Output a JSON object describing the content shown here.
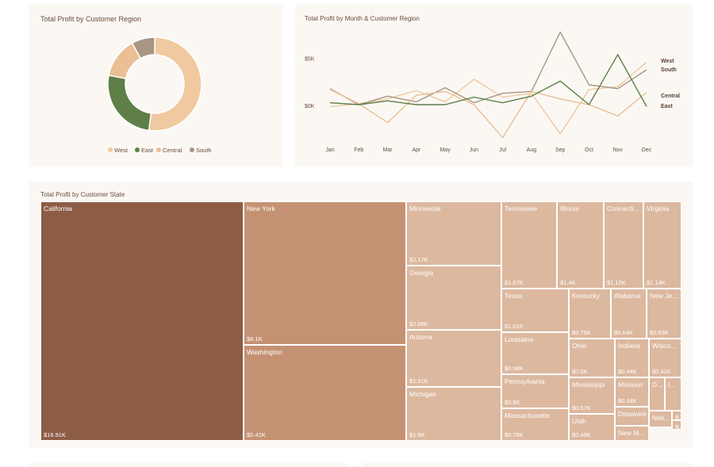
{
  "colors": {
    "west": "#f0c9a0",
    "east": "#5e7f47",
    "central": "#e9bf93",
    "south": "#a89682",
    "treemap_top": "#8d5c45",
    "treemap_second": "#c49273",
    "treemap_rest": "#dcb89f"
  },
  "chart_data": [
    {
      "type": "pie",
      "title": "Total Profit by Customer Region",
      "categories": [
        "West",
        "East",
        "Central",
        "South"
      ],
      "values": [
        52,
        26,
        14,
        8
      ],
      "legend": [
        "West",
        "East",
        "Central",
        "South"
      ]
    },
    {
      "type": "line",
      "title": "Total Profit by Month & Customer Region",
      "categories": [
        "Jan",
        "Feb",
        "Mar",
        "Apr",
        "May",
        "Jun",
        "Jul",
        "Aug",
        "Sep",
        "Oct",
        "Nov",
        "Dec"
      ],
      "yticks": [
        "$5K",
        "$0K"
      ],
      "ytick_values": [
        5000,
        0
      ],
      "ylim": [
        -3600,
        8000
      ],
      "series": [
        {
          "name": "West",
          "values": [
            -100,
            200,
            700,
            1600,
            400,
            2800,
            900,
            1300,
            -3000,
            1700,
            2000,
            4600
          ]
        },
        {
          "name": "South",
          "values": [
            1800,
            100,
            1000,
            400,
            1900,
            300,
            1300,
            1500,
            7800,
            2200,
            1800,
            3800
          ]
        },
        {
          "name": "Central",
          "values": [
            1700,
            200,
            -1800,
            1100,
            1500,
            100,
            -3400,
            1500,
            700,
            100,
            -1100,
            1400
          ]
        },
        {
          "name": "East",
          "values": [
            300,
            100,
            500,
            100,
            100,
            900,
            300,
            1000,
            2600,
            100,
            5400,
            -100
          ]
        }
      ]
    },
    {
      "type": "treemap",
      "title": "Total Profit by Customer State",
      "tiles": [
        {
          "name": "California",
          "value": "$16.91K"
        },
        {
          "name": "New York",
          "value": "$8.1K"
        },
        {
          "name": "Washington",
          "value": "$5.41K"
        },
        {
          "name": "Minnesota",
          "value": "$2.17K"
        },
        {
          "name": "Georgia",
          "value": "$2.06K"
        },
        {
          "name": "Arizona",
          "value": "$1.91K"
        },
        {
          "name": "Michigan",
          "value": "$1.8K"
        },
        {
          "name": "Tennessee",
          "value": "$1.67K"
        },
        {
          "name": "Illinois",
          "value": "$1.4K"
        },
        {
          "name": "Connecti...",
          "value": "$1.15K"
        },
        {
          "name": "Virginia",
          "value": "$1.14K"
        },
        {
          "name": "Texas",
          "value": "$1.01K"
        },
        {
          "name": "Louisiana",
          "value": "$0.98K"
        },
        {
          "name": "Pennsylvania",
          "value": "$0.9K"
        },
        {
          "name": "Massachusetts",
          "value": "$0.76K"
        },
        {
          "name": "Kentucky",
          "value": "$0.75K"
        },
        {
          "name": "Alabama",
          "value": "$0.64K"
        },
        {
          "name": "New Je...",
          "value": "$0.63K"
        },
        {
          "name": "Ohio",
          "value": "$0.6K"
        },
        {
          "name": "Indiana",
          "value": "$0.44K"
        },
        {
          "name": "Wisco...",
          "value": "$0.41K"
        },
        {
          "name": "Mississippi",
          "value": "$0.57K"
        },
        {
          "name": "Missouri",
          "value": "$0.34K"
        },
        {
          "name": "Utah",
          "value": "$0.46K"
        },
        {
          "name": "Delaware",
          "value": ""
        },
        {
          "name": "New M...",
          "value": ""
        },
        {
          "name": "Neb...",
          "value": ""
        },
        {
          "name": "D...",
          "value": ""
        },
        {
          "name": "I...",
          "value": ""
        },
        {
          "name": "$...",
          "value": ""
        },
        {
          "name": "$",
          "value": ""
        }
      ]
    }
  ]
}
